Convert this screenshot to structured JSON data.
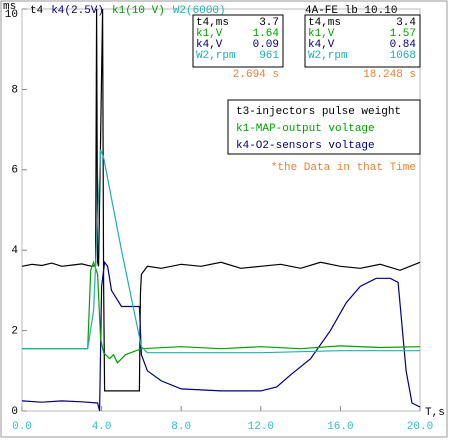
{
  "chart_data": {
    "type": "line",
    "y_label": "ms",
    "x_label": "T,s",
    "subtitle": "4A-FE lb 10.10",
    "xlim": [
      0,
      20
    ],
    "ylim": [
      0,
      10
    ],
    "xticks": [
      {
        "value": 0,
        "label": "0.0"
      },
      {
        "value": 4,
        "label": "4.0"
      },
      {
        "value": 8,
        "label": "8.0"
      },
      {
        "value": 12,
        "label": "12.0"
      },
      {
        "value": 16,
        "label": "16.0"
      },
      {
        "value": 20,
        "label": "20.0"
      }
    ],
    "yticks": [
      0,
      2,
      4,
      6,
      8,
      10
    ],
    "series": [
      {
        "name": "t4",
        "color": "#000000",
        "x": [
          0,
          0.5,
          1,
          1.5,
          2,
          2.5,
          3,
          3.5,
          3.7,
          3.75,
          3.8,
          3.85,
          4.05,
          4.1,
          4.15,
          4.3,
          4.5,
          5.9,
          5.95,
          6.0,
          6.3,
          7,
          8,
          9,
          10,
          11,
          12,
          13,
          14,
          15,
          16,
          17,
          18,
          19,
          20
        ],
        "values": [
          3.6,
          3.65,
          3.62,
          3.68,
          3.6,
          3.63,
          3.66,
          3.6,
          3.62,
          10,
          3.7,
          3.6,
          10,
          3.2,
          0.5,
          0.5,
          0.5,
          0.5,
          2.9,
          3.4,
          3.6,
          3.55,
          3.65,
          3.6,
          3.7,
          3.55,
          3.6,
          3.65,
          3.55,
          3.7,
          3.6,
          3.55,
          3.65,
          3.5,
          3.7
        ]
      },
      {
        "name": "k4(2.5V)",
        "color": "#000080",
        "x": [
          0,
          1,
          2,
          3,
          3.8,
          3.9,
          4.0,
          4.15,
          4.3,
          4.5,
          5.0,
          5.9,
          6.0,
          6.3,
          7,
          8,
          10,
          12,
          12.8,
          13.5,
          14.5,
          15.5,
          16.3,
          17,
          17.8,
          18.5,
          18.9,
          19.3,
          19.6,
          20
        ],
        "values": [
          0.25,
          0.22,
          0.25,
          0.23,
          0.2,
          0,
          3.1,
          3.7,
          3.6,
          3.0,
          2.6,
          2.6,
          1.4,
          1.0,
          0.75,
          0.55,
          0.5,
          0.5,
          0.6,
          0.9,
          1.3,
          2.0,
          2.7,
          3.1,
          3.3,
          3.3,
          3.2,
          1.0,
          0.2,
          0.1
        ]
      },
      {
        "name": "k1(10 V)",
        "color": "#00a000",
        "x": [
          0,
          2,
          3.3,
          3.45,
          3.6,
          3.8,
          3.95,
          4.1,
          4.4,
          4.6,
          4.8,
          5.2,
          6,
          8,
          10,
          12,
          14,
          16,
          18,
          20
        ],
        "values": [
          1.55,
          1.55,
          1.55,
          3.5,
          3.7,
          3.4,
          1.8,
          1.45,
          1.3,
          1.4,
          1.2,
          1.4,
          1.55,
          1.6,
          1.55,
          1.6,
          1.55,
          1.62,
          1.58,
          1.6
        ]
      },
      {
        "name": "W2(6000)",
        "color": "#20b0b0",
        "x": [
          0,
          2,
          3.3,
          3.6,
          3.95,
          4.1,
          5,
          6.0,
          6.3,
          8,
          12,
          16,
          20
        ],
        "values": [
          1.55,
          1.55,
          1.55,
          2.5,
          6.5,
          6.3,
          4.0,
          1.6,
          1.45,
          1.45,
          1.45,
          1.5,
          1.5
        ]
      }
    ],
    "readouts": [
      {
        "rows": [
          [
            "t4,ms",
            "3.7"
          ],
          [
            "k1,V",
            "1.64"
          ],
          [
            "k4,V",
            "0.09"
          ],
          [
            "W2,rpm",
            "961"
          ]
        ],
        "time": "2.694 s"
      },
      {
        "rows": [
          [
            "t4,ms",
            "3.4"
          ],
          [
            "k1,V",
            "1.57"
          ],
          [
            "k4,V",
            "0.84"
          ],
          [
            "W2,rpm",
            "1068"
          ]
        ],
        "time": "18.248 s"
      }
    ],
    "legend": [
      {
        "text": "t3-injectors pulse weight",
        "color": "#000000"
      },
      {
        "text": "k1-MAP-output voltage",
        "color": "#00a000"
      },
      {
        "text": "k4-O2-sensors voltage",
        "color": "#000080"
      }
    ],
    "annotation": "*the Data in that Time",
    "annotation_color": "#f08030",
    "xtick_color": "#30c0c0"
  }
}
